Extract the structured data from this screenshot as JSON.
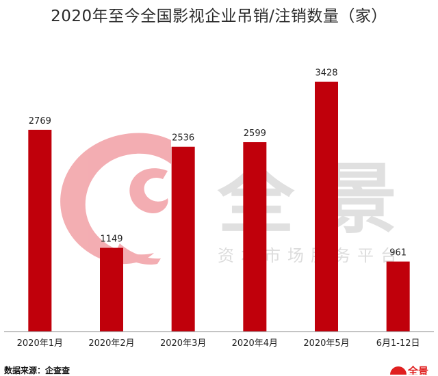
{
  "chart_data": {
    "type": "bar",
    "title": "2020年至今全国影视企业吊销/注销数量（家）",
    "categories": [
      "2020年1月",
      "2020年2月",
      "2020年3月",
      "2020年4月",
      "2020年5月",
      "6月1-12日"
    ],
    "values": [
      2769,
      1149,
      2536,
      2599,
      3428,
      961
    ],
    "ylim": [
      0,
      3800
    ],
    "grid": false,
    "bar_color": "#c0000b"
  },
  "source_text": "数据来源：企查查",
  "watermark": {
    "brand": "全景",
    "tagline": "资本市场服务平台"
  },
  "corner_logo_text": "全景"
}
